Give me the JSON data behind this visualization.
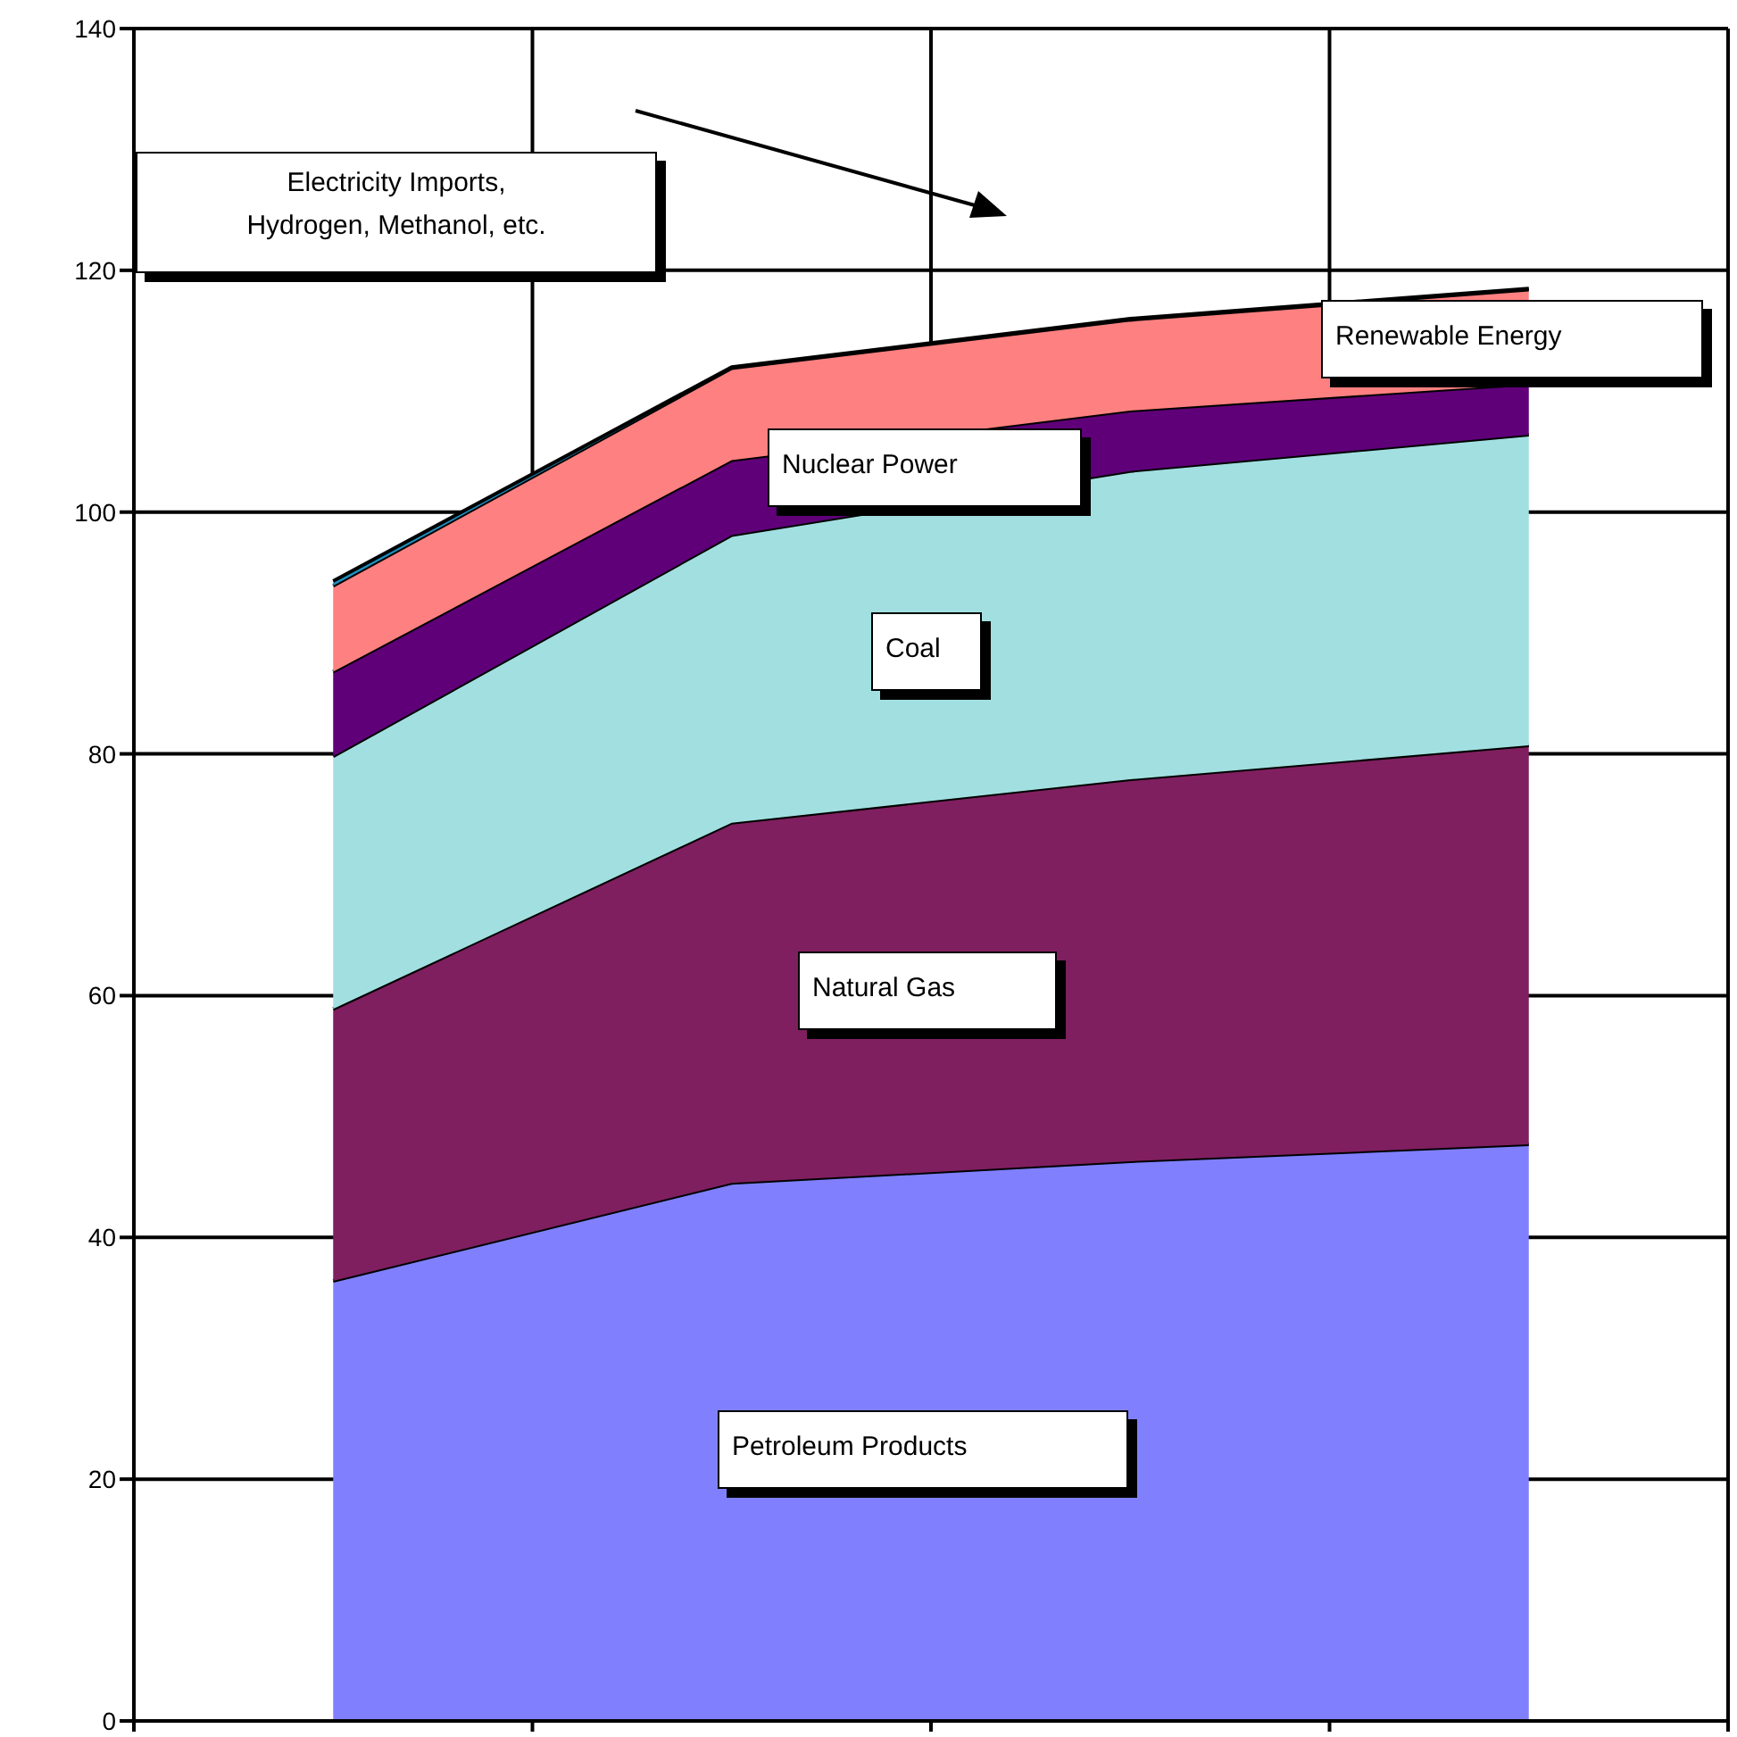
{
  "chart_data": {
    "type": "area",
    "stacked": true,
    "categories": [
      null,
      null,
      null,
      null
    ],
    "series": [
      {
        "name": "Petroleum Products",
        "color": "#8080ff",
        "values": [
          36.4,
          44.5,
          46.3,
          47.7
        ]
      },
      {
        "name": "Natural Gas",
        "color": "#7f1f5f",
        "values": [
          22.5,
          29.8,
          31.6,
          33.0
        ]
      },
      {
        "name": "Coal",
        "color": "#a2dfe0",
        "values": [
          20.9,
          23.8,
          25.5,
          25.7
        ]
      },
      {
        "name": "Nuclear Power",
        "color": "#5f0079",
        "values": [
          7.0,
          6.2,
          5.0,
          4.2
        ]
      },
      {
        "name": "Renewable Energy",
        "color": "#ff8080",
        "values": [
          7.1,
          7.6,
          7.5,
          7.8
        ]
      },
      {
        "color": "#1e90c0",
        "values": [
          0.4,
          0.1,
          0.1,
          0.1
        ]
      }
    ],
    "annotations": [
      "Electricity Imports, Hydrogen, Methanol, etc."
    ],
    "ylim": [
      0,
      140
    ],
    "yticks": [
      0,
      20,
      40,
      60,
      80,
      100,
      120,
      140
    ],
    "grid": true,
    "tick_labels": "y"
  }
}
